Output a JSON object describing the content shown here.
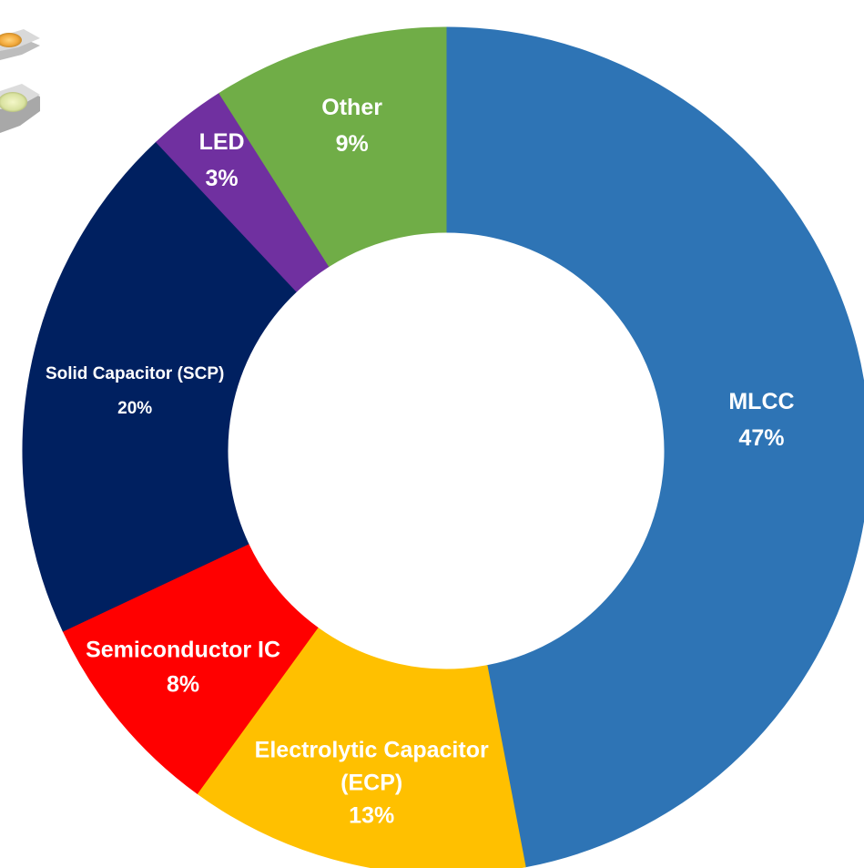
{
  "chart_data": {
    "type": "pie",
    "style": "donut",
    "slices": [
      {
        "label": "MLCC",
        "value": 47,
        "value_text": "47%",
        "color": "#2E74B5"
      },
      {
        "label": "Electrolytic Capacitor (ECP)",
        "label_lines": [
          "Electrolytic Capacitor",
          "(ECP)"
        ],
        "value": 13,
        "value_text": "13%",
        "color": "#FFC000"
      },
      {
        "label": "Semiconductor IC",
        "value": 8,
        "value_text": "8%",
        "color": "#FF0000"
      },
      {
        "label": "Solid Capacitor (SCP)",
        "value": 20,
        "value_text": "20%",
        "color": "#002060"
      },
      {
        "label": "LED",
        "value": 3,
        "value_text": "3%",
        "color": "#7030A0"
      },
      {
        "label": "Other",
        "value": 9,
        "value_text": "9%",
        "color": "#70AD47"
      }
    ],
    "slice_order": "clockwise from top",
    "legend": "none",
    "decorations": [
      "led-component-image"
    ]
  }
}
